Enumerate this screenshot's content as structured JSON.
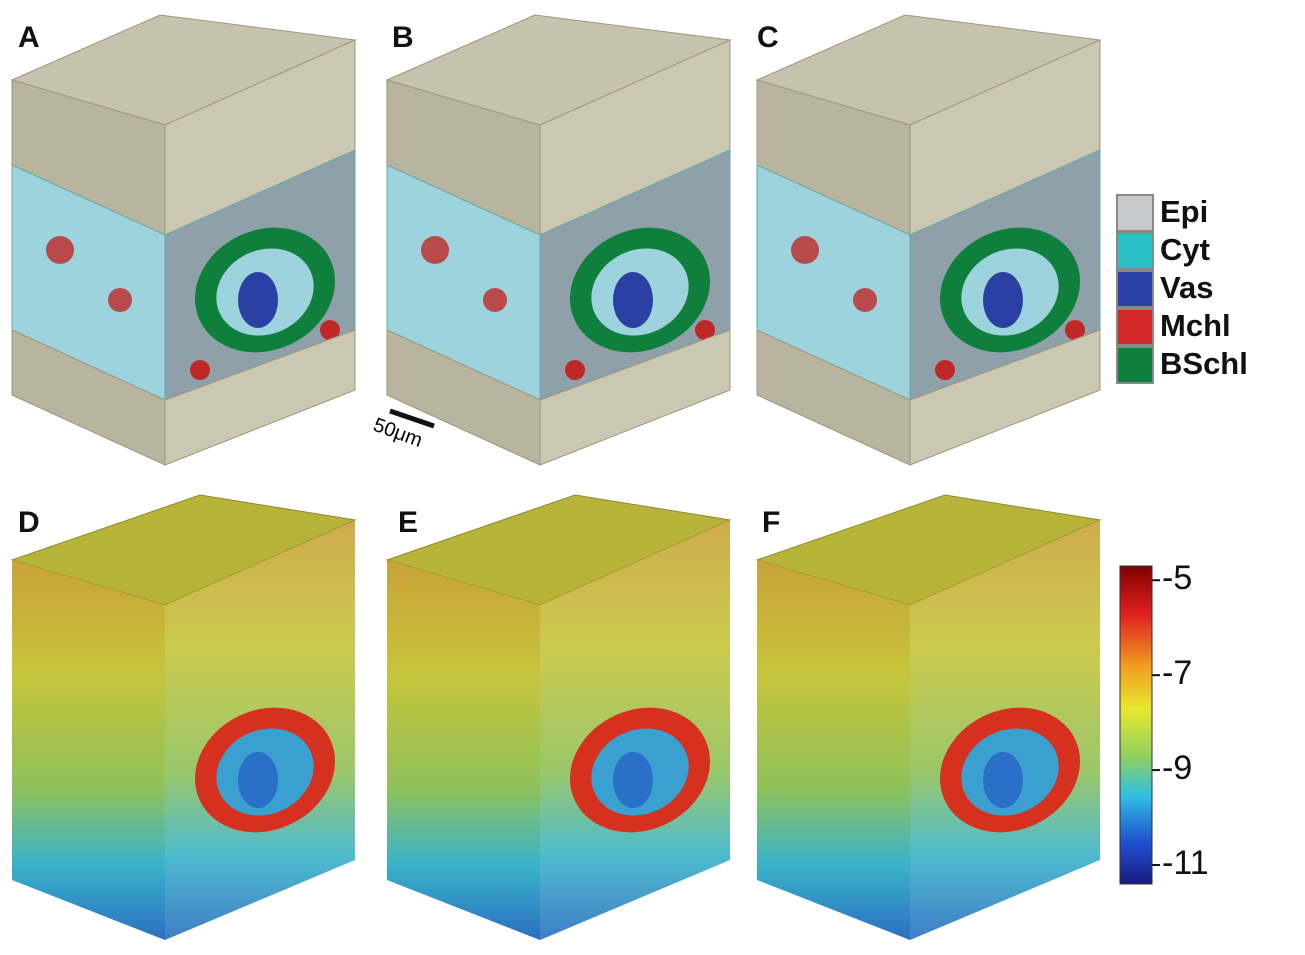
{
  "panels": [
    "A",
    "B",
    "C",
    "D",
    "E",
    "F"
  ],
  "legend": [
    {
      "label": "Epi",
      "color": "#c8c9cb"
    },
    {
      "label": "Cyt",
      "color": "#2cbfc5"
    },
    {
      "label": "Vas",
      "color": "#2b40a3"
    },
    {
      "label": "Mchl",
      "color": "#d3282a"
    },
    {
      "label": "BSchl",
      "color": "#0f7f3d"
    }
  ],
  "scale_bar": "50μm",
  "colorbar": {
    "range": [
      -11.4,
      -4.7
    ],
    "ticks": [
      -5,
      -7,
      -9,
      -11
    ]
  }
}
